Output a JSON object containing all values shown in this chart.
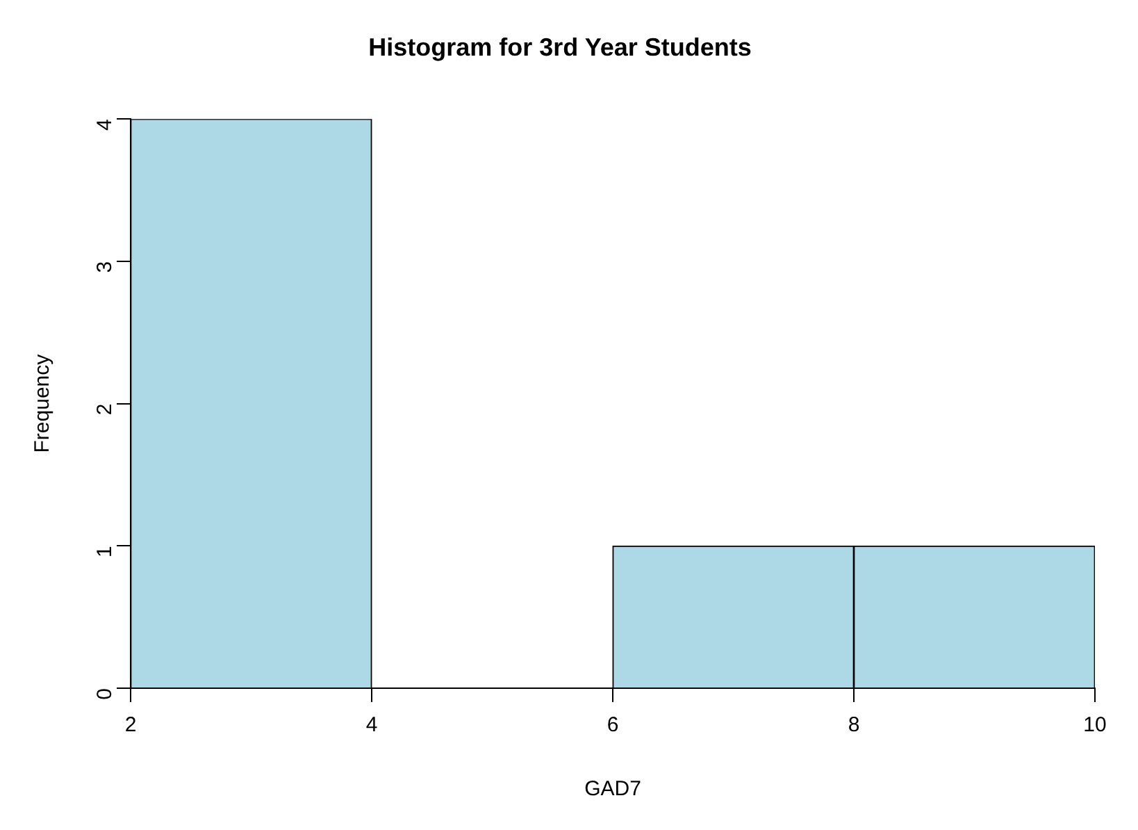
{
  "chart_data": {
    "type": "histogram",
    "title": "Histogram for 3rd Year Students",
    "xlabel": "GAD7",
    "ylabel": "Frequency",
    "bins": [
      2,
      4,
      6,
      8,
      10
    ],
    "values": [
      4,
      0,
      1,
      1
    ],
    "color": "#add8e6",
    "xlim": [
      2,
      10
    ],
    "xticks": [
      2,
      4,
      6,
      8,
      10
    ],
    "ylim": [
      0,
      4
    ],
    "yticks": [
      0,
      1,
      2,
      3,
      4
    ],
    "grid": false,
    "legend": false
  }
}
